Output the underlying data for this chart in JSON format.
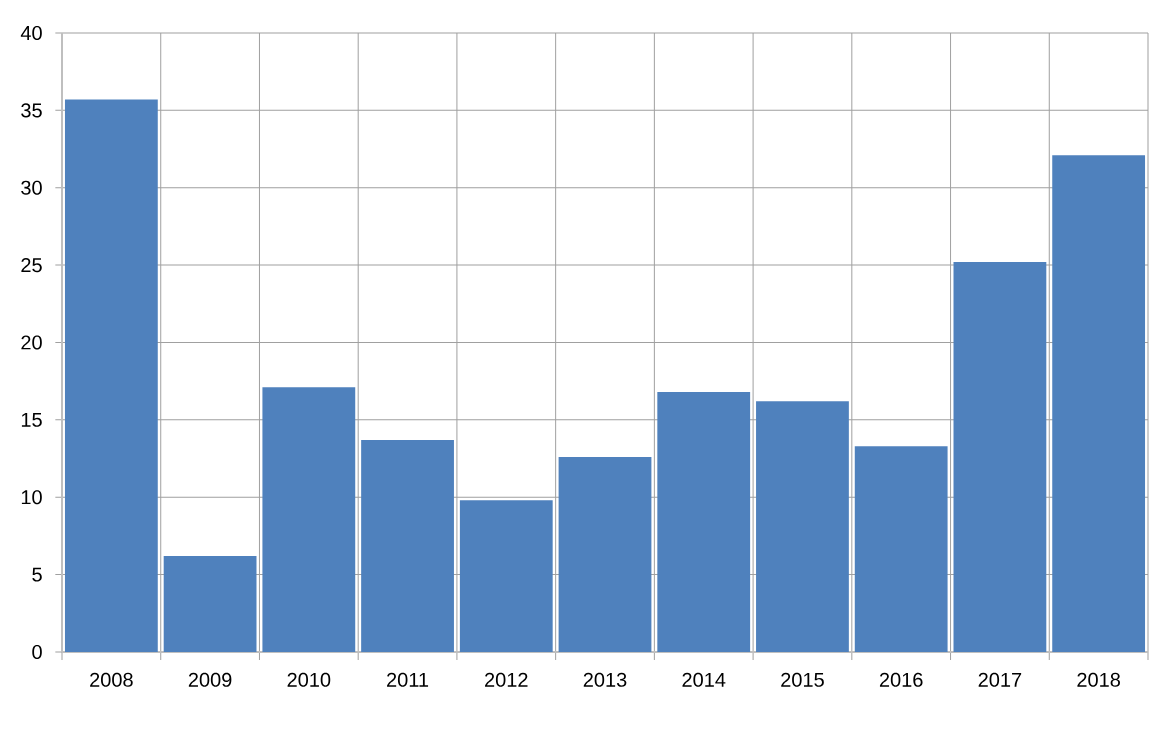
{
  "chart_data": {
    "type": "bar",
    "categories": [
      "2008",
      "2009",
      "2010",
      "2011",
      "2012",
      "2013",
      "2014",
      "2015",
      "2016",
      "2017",
      "2018"
    ],
    "values": [
      35.7,
      6.2,
      17.1,
      13.7,
      9.8,
      12.6,
      16.8,
      16.2,
      13.3,
      25.2,
      32.1
    ],
    "color": "#4f81bd",
    "ylim": [
      0,
      40
    ],
    "yticks": [
      0,
      5,
      10,
      15,
      20,
      25,
      30,
      35,
      40
    ],
    "grid": true
  }
}
